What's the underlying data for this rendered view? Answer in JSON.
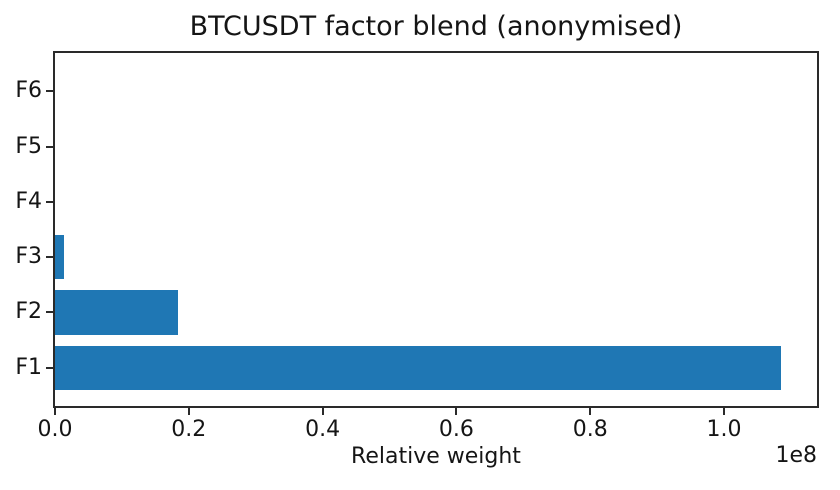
{
  "chart_data": {
    "type": "bar",
    "orientation": "horizontal",
    "title": "BTCUSDT factor blend (anonymised)",
    "xlabel": "Relative weight",
    "ylabel": "",
    "x_offset_label": "1e8",
    "categories": [
      "F1",
      "F2",
      "F3",
      "F4",
      "F5",
      "F6"
    ],
    "values": [
      108500000,
      18400000,
      1300000,
      0,
      0,
      0
    ],
    "xlim": [
      0,
      113900000
    ],
    "x_ticks": [
      {
        "label": "0.0",
        "value": 0
      },
      {
        "label": "0.2",
        "value": 20000000
      },
      {
        "label": "0.4",
        "value": 40000000
      },
      {
        "label": "0.6",
        "value": 60000000
      },
      {
        "label": "0.8",
        "value": 80000000
      },
      {
        "label": "1.0",
        "value": 100000000
      }
    ],
    "bar_color": "#1f77b4",
    "frame_color": "#2a2a2a",
    "grid": false,
    "legend_position": "none"
  }
}
